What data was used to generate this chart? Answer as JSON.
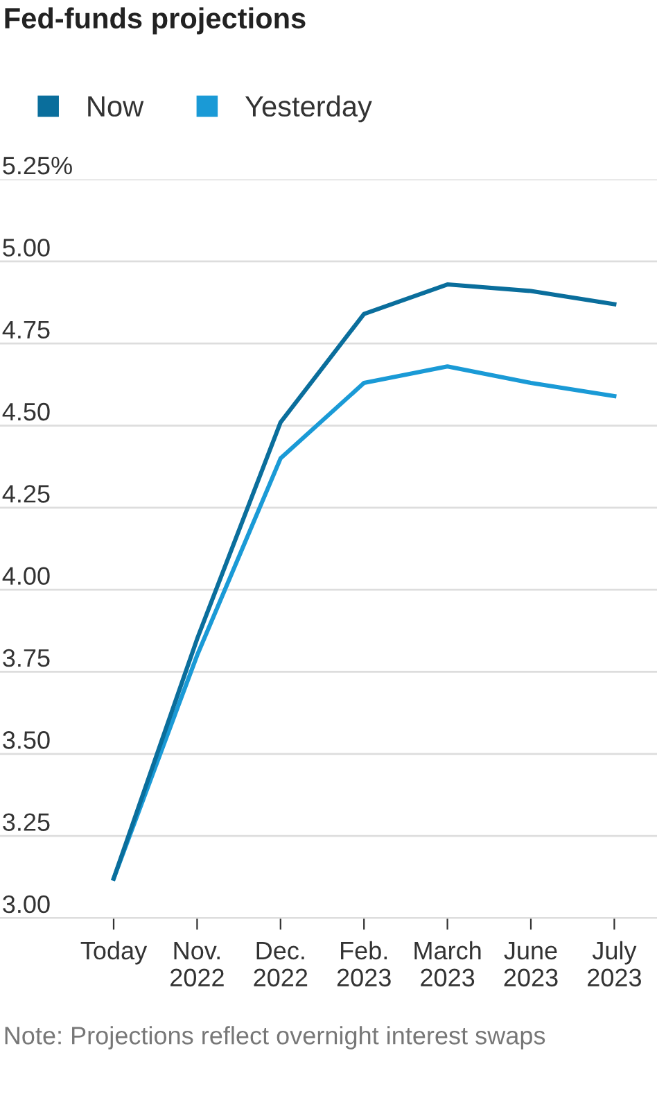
{
  "chart_data": {
    "type": "line",
    "title": "Fed-funds projections",
    "categories": [
      "Today",
      "Nov.\n2022",
      "Dec.\n2022",
      "Feb.\n2023",
      "March\n2023",
      "June\n2023",
      "July\n2023"
    ],
    "series": [
      {
        "name": "Now",
        "color": "#0a6e9c",
        "values": [
          3.12,
          3.85,
          4.51,
          4.84,
          4.93,
          4.91,
          4.87
        ]
      },
      {
        "name": "Yesterday",
        "color": "#1a9ad6",
        "values": [
          3.12,
          3.8,
          4.4,
          4.63,
          4.68,
          4.63,
          4.59
        ]
      }
    ],
    "ylim": [
      3.0,
      5.25
    ],
    "yticks": [
      {
        "value": 3.0,
        "label": "3.00"
      },
      {
        "value": 3.25,
        "label": "3.25"
      },
      {
        "value": 3.5,
        "label": "3.50"
      },
      {
        "value": 3.75,
        "label": "3.75"
      },
      {
        "value": 4.0,
        "label": "4.00"
      },
      {
        "value": 4.25,
        "label": "4.25"
      },
      {
        "value": 4.5,
        "label": "4.50"
      },
      {
        "value": 4.75,
        "label": "4.75"
      },
      {
        "value": 5.0,
        "label": "5.00"
      },
      {
        "value": 5.25,
        "label": "5.25%"
      }
    ],
    "grid": "y",
    "legend": "top left",
    "marker": "none",
    "line_style": "solid",
    "annotations": [
      "Note: Projections reflect overnight interest swaps"
    ]
  }
}
